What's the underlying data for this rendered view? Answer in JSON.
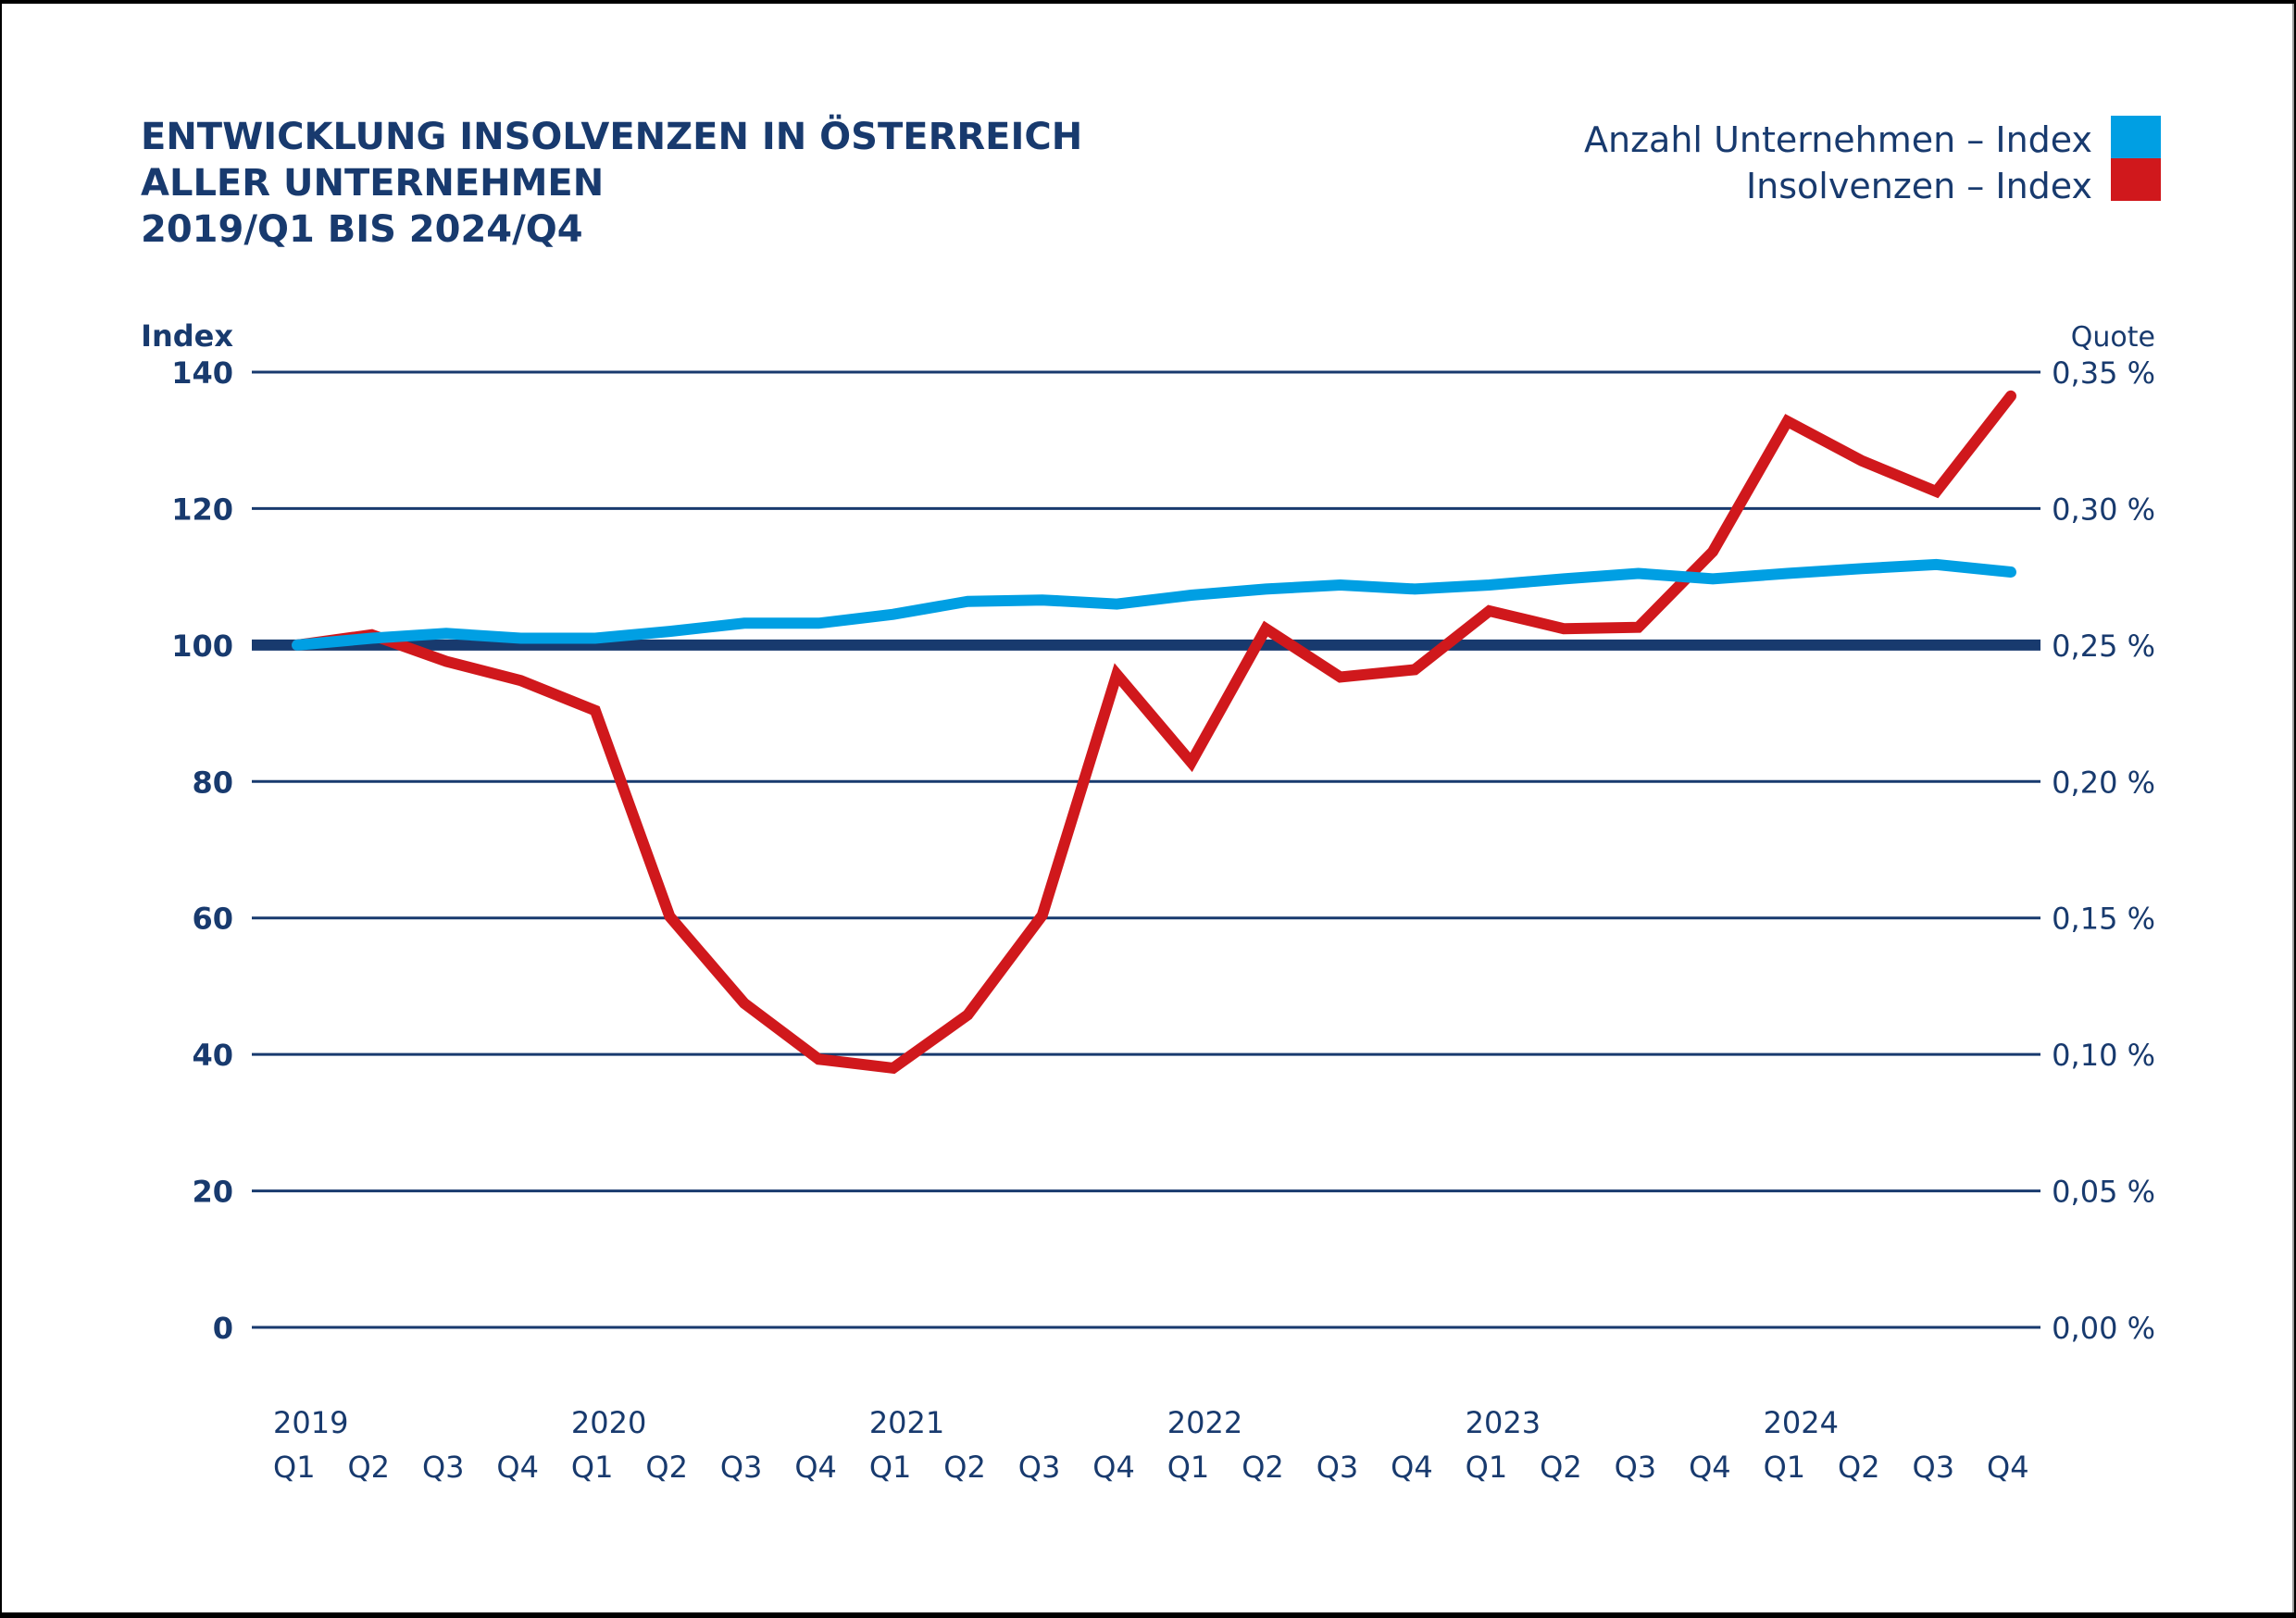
{
  "chart_data": {
    "type": "line",
    "title_lines": [
      "ENTWICKLUNG INSOLVENZEN IN ÖSTERREICH",
      "ALLER UNTERNEHMEN",
      "2019/Q1 BIS 2024/Q4"
    ],
    "ylabel": "Index",
    "ylabel_right": "Quote",
    "ylim": [
      0,
      140
    ],
    "ylim_right": [
      0.0,
      0.35
    ],
    "yticks": [
      0,
      20,
      40,
      60,
      80,
      100,
      120,
      140
    ],
    "yticks_right": [
      "0,00 %",
      "0,05 %",
      "0,10 %",
      "0,15 %",
      "0,20 %",
      "0,25 %",
      "0,30 %",
      "0,35 %"
    ],
    "reference_line": 100,
    "grid": true,
    "legend_position": "top-right",
    "years": [
      "2019",
      "2020",
      "2021",
      "2022",
      "2023",
      "2024"
    ],
    "categories": [
      "2019 Q1",
      "2019 Q2",
      "2019 Q3",
      "2019 Q4",
      "2020 Q1",
      "2020 Q2",
      "2020 Q3",
      "2020 Q4",
      "2021 Q1",
      "2021 Q2",
      "2021 Q3",
      "2021 Q4",
      "2022 Q1",
      "2022 Q2",
      "2022 Q3",
      "2022 Q4",
      "2023 Q1",
      "2023 Q2",
      "2023 Q3",
      "2023 Q4",
      "2024 Q1",
      "2024 Q2",
      "2024 Q3",
      "2024 Q4"
    ],
    "quarter_labels": [
      "Q1",
      "Q2",
      "Q3",
      "Q4",
      "Q1",
      "Q2",
      "Q3",
      "Q4",
      "Q1",
      "Q2",
      "Q3",
      "Q4",
      "Q1",
      "Q2",
      "Q3",
      "Q4",
      "Q1",
      "Q2",
      "Q3",
      "Q4",
      "Q1",
      "Q2",
      "Q3",
      "Q4"
    ],
    "series": [
      {
        "name": "Anzahl Unternehmen – Index",
        "color": "#009fe3",
        "values": [
          100,
          101,
          101.7,
          101,
          101,
          102,
          103.2,
          103.2,
          104.5,
          106.4,
          106.6,
          106,
          107.3,
          108.2,
          108.8,
          108.2,
          108.8,
          109.7,
          110.5,
          109.7,
          110.5,
          111.2,
          111.8,
          110.7
        ]
      },
      {
        "name": "Insolvenzen – Index",
        "color": "#d0181c",
        "values": [
          100,
          101.5,
          97.6,
          94.8,
          90.4,
          60.2,
          47.5,
          39.3,
          38,
          45.8,
          60.4,
          95.7,
          82.8,
          102.4,
          95.3,
          96.4,
          105,
          102.4,
          102.6,
          113.7,
          132.8,
          127,
          122.5,
          136.5
        ]
      }
    ]
  },
  "colors": {
    "text": "#183a6e",
    "grid": "#183a6e",
    "background": "#ffffff"
  }
}
